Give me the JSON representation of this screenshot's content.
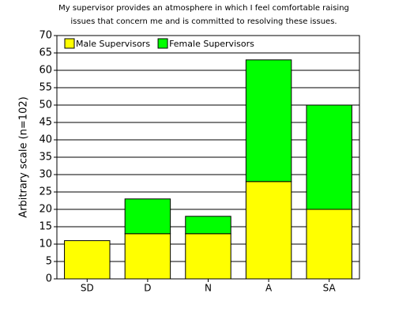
{
  "chart_data": {
    "type": "stacked_bar",
    "title": [
      "My supervisor provides an atmosphere in which I feel comfortable raising",
      "issues that concern me and is committed to resolving these issues."
    ],
    "y_label": "Arbitrary scale (n=102)",
    "categories": [
      "SD",
      "D",
      "N",
      "A",
      "SA"
    ],
    "series": [
      {
        "name": "Male Supervisors",
        "color": "#ffff00",
        "values": [
          11,
          13,
          13,
          28,
          20
        ]
      },
      {
        "name": "Female Supervisors",
        "color": "#00ff00",
        "values": [
          0,
          10,
          5,
          35,
          30
        ]
      }
    ],
    "ylim": [
      0,
      70
    ],
    "yticks": [
      0,
      5,
      10,
      15,
      20,
      25,
      30,
      35,
      40,
      45,
      50,
      55,
      60,
      65,
      70
    ],
    "grid": true,
    "legend": "top-left"
  }
}
